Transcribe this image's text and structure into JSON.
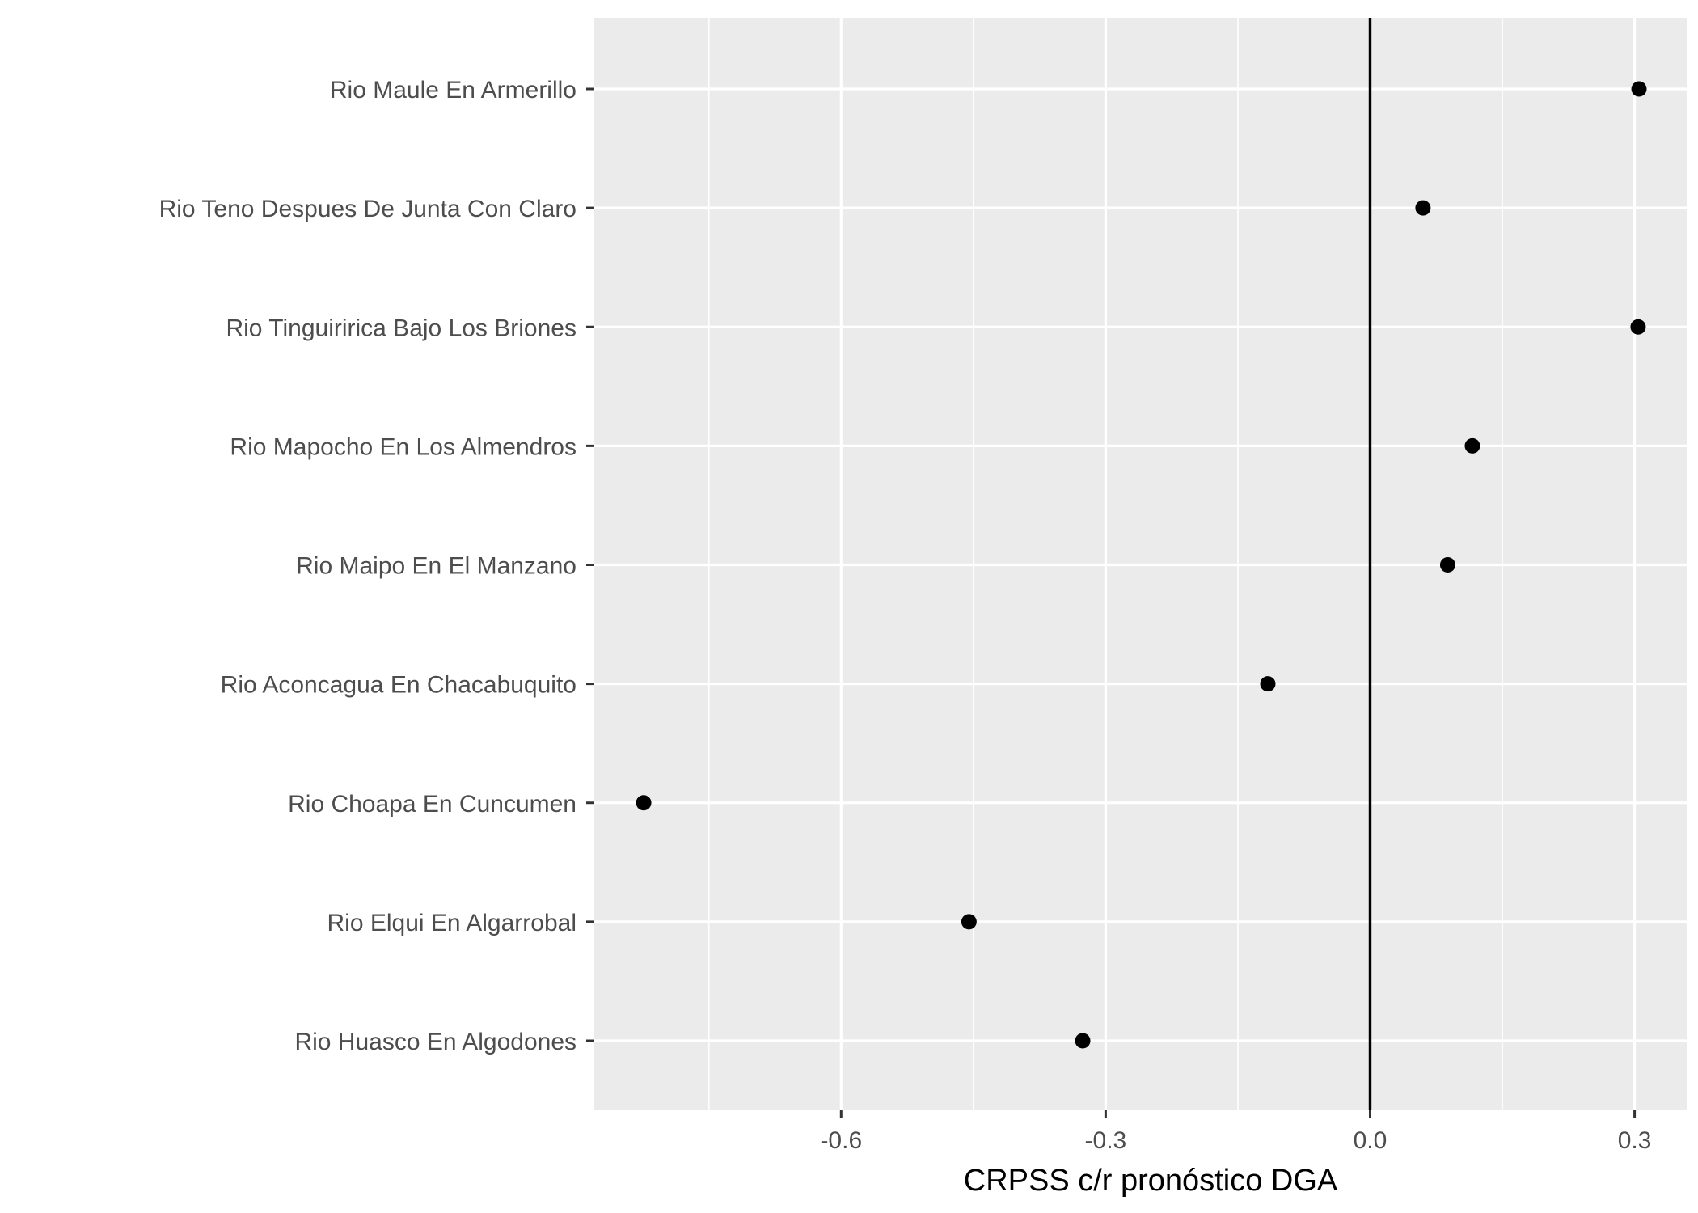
{
  "chart_data": {
    "type": "scatter",
    "title": "",
    "xlabel": "CRPSS c/r pronóstico DGA",
    "ylabel": "",
    "xlim": [
      -0.88,
      0.36
    ],
    "x_ticks": [
      -0.6,
      -0.3,
      0.0,
      0.3
    ],
    "x_tick_labels": [
      "-0.6",
      "-0.3",
      "0.0",
      "0.3"
    ],
    "grid": true,
    "legend": "none",
    "reference_line": {
      "x": 0.0
    },
    "categories": [
      "Rio Maule En Armerillo",
      "Rio Teno Despues De Junta Con Claro",
      "Rio Tinguiririca Bajo Los Briones",
      "Rio Mapocho En Los Almendros",
      "Rio Maipo En El Manzano",
      "Rio Aconcagua En Chacabuquito",
      "Rio Choapa En Cuncumen",
      "Rio Elqui En Algarrobal",
      "Rio Huasco En Algodones"
    ],
    "values": [
      0.305,
      0.06,
      0.304,
      0.116,
      0.088,
      -0.116,
      -0.824,
      -0.455,
      -0.326
    ],
    "colors": {
      "panel": "#ebebeb",
      "grid": "#ffffff",
      "point": "#000000",
      "tick_text": "#4d4d4d",
      "reference_line": "#000000"
    }
  }
}
